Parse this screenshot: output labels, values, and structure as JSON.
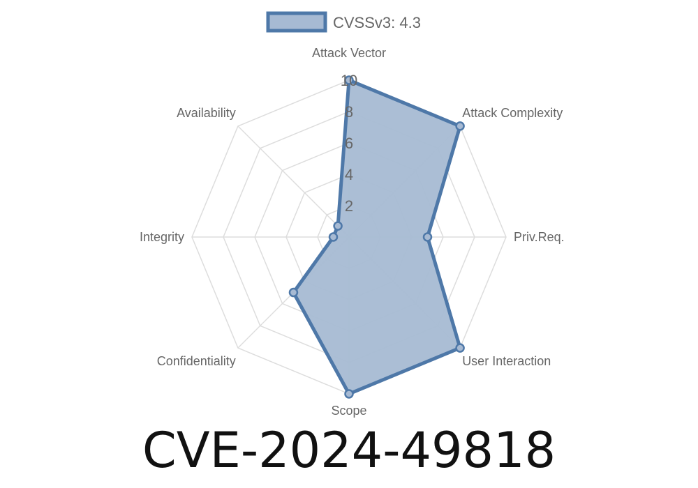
{
  "title": "CVE-2024-49818",
  "chart_data": {
    "type": "radar",
    "axes": [
      "Attack Vector",
      "Attack Complexity",
      "Priv.Req.",
      "User Interaction",
      "Scope",
      "Confidentiality",
      "Integrity",
      "Availability"
    ],
    "series": [
      {
        "name": "CVSSv3: 4.3",
        "values": [
          10,
          10,
          5,
          10,
          10,
          5,
          1,
          1
        ]
      }
    ],
    "r_ticks": [
      "2",
      "4",
      "6",
      "8",
      "10"
    ],
    "r_range": [
      0,
      10
    ],
    "grid": true,
    "legend_position": "top",
    "colors": {
      "line": "#4e78a8",
      "fill": "#a7bad3",
      "grid": "#dddddd",
      "text": "#666666"
    }
  }
}
